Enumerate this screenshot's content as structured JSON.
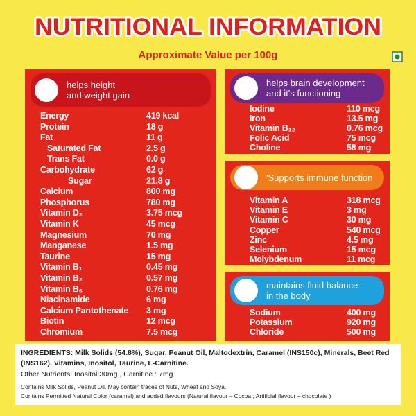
{
  "header": {
    "title": "NUTRITIONAL INFORMATION",
    "subtitle": "Approximate Value per 100g"
  },
  "panels": [
    {
      "heading": [
        "helps height",
        "and weight gain"
      ],
      "rows": [
        [
          "Energy",
          "419 kcal"
        ],
        [
          "Protein",
          "18 g"
        ],
        [
          "Fat",
          "11 g"
        ],
        [
          "Saturated Fat",
          "2.5 g"
        ],
        [
          "Trans Fat",
          "0.0 g"
        ],
        [
          "Carbohydrate",
          "62 g"
        ],
        [
          "Sugar",
          "21.8 g"
        ],
        [
          "Calcium",
          "800 mg"
        ],
        [
          "Phosphorus",
          "780 mg"
        ],
        [
          "Vitamin D₂",
          "3.75 mcg"
        ],
        [
          "Vitamin K",
          "45 mcg"
        ],
        [
          "Magnesium",
          "70 mg"
        ],
        [
          "Manganese",
          "1.5 mg"
        ],
        [
          "Taurine",
          "15 mg"
        ],
        [
          "Vitamin B₁",
          "0.45 mg"
        ],
        [
          "Vitamin B₂",
          "0.57 mg"
        ],
        [
          "Vitamin B₆",
          "0.76 mg"
        ],
        [
          "Niacinamide",
          "6 mg"
        ],
        [
          "Calcium Pantothenate",
          "3 mg"
        ],
        [
          "Biotin",
          "12 mcg"
        ],
        [
          "Chromium",
          "7.5 mcg"
        ]
      ]
    },
    {
      "heading": [
        "helps brain development",
        "and it's functioning"
      ],
      "rows": [
        [
          "Iodine",
          "110 mcg"
        ],
        [
          "Iron",
          "13.5 mg"
        ],
        [
          "Vitamin B₁₂",
          "0.76 mcg"
        ],
        [
          "Folic Acid",
          "75 mcg"
        ],
        [
          "Choline",
          "58 mg"
        ]
      ]
    },
    {
      "heading": [
        "'Supports immune function"
      ],
      "rows": [
        [
          "Vitamin A",
          "318 mcg"
        ],
        [
          "Vitamin E",
          "3 mg"
        ],
        [
          "Vitamin C",
          "30 mg"
        ],
        [
          "Copper",
          "540 mcg"
        ],
        [
          "Zinc",
          "4.5 mg"
        ],
        [
          "Selenium",
          "15 mcg"
        ],
        [
          "Molybdenum",
          "11 mcg"
        ]
      ]
    },
    {
      "heading": [
        "maintains fluid balance",
        "in the body"
      ],
      "rows": [
        [
          "Sodium",
          "400 mg"
        ],
        [
          "Potassium",
          "920 mg"
        ],
        [
          "Chloride",
          "500 mg"
        ]
      ]
    }
  ],
  "footer": {
    "ingredients": "INGREDIENTS: Milk Solids (54.8%), Sugar, Peanut Oil, Maltodextrin, Caramel (INS150c), Minerals, Beet Red (INS162), Vitamins, Inositol, Taurine, L-Carnitine.",
    "other": "Other Nutrients: Inositol:30mg , Carnitine : 7mg",
    "notes": [
      "Contains Milk Solids, Peanut Oil. May contain traces of Nuts, Wheat and Soya.",
      "Contains Permitted Natural Color (caramel) and added flavours (Natural flavour – Cocoa ; Artificial flavour – chocolate )"
    ]
  }
}
